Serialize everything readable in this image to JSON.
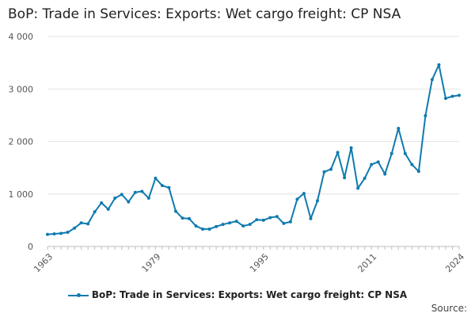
{
  "chart_data": {
    "type": "line",
    "title": "BoP: Trade in Services: Exports: Wet cargo freight: CP NSA",
    "xlabel": "",
    "ylabel": "",
    "x_tick_labels": [
      "1963",
      "1979",
      "1995",
      "2011",
      "2024"
    ],
    "y_tick_labels": [
      "0",
      "1 000",
      "2 000",
      "3 000",
      "4 000"
    ],
    "y_ticks": [
      0,
      1000,
      2000,
      3000,
      4000
    ],
    "xlim": [
      1963,
      2024
    ],
    "ylim": [
      0,
      4000
    ],
    "grid": true,
    "legend_position": "bottom",
    "series": [
      {
        "name": "BoP: Trade in Services: Exports: Wet cargo freight: CP NSA",
        "color": "#0f7aaf",
        "x": [
          1963,
          1964,
          1965,
          1966,
          1967,
          1968,
          1969,
          1970,
          1971,
          1972,
          1973,
          1974,
          1975,
          1976,
          1977,
          1978,
          1979,
          1980,
          1981,
          1982,
          1983,
          1984,
          1985,
          1986,
          1987,
          1988,
          1989,
          1990,
          1991,
          1992,
          1993,
          1994,
          1995,
          1996,
          1997,
          1998,
          1999,
          2000,
          2001,
          2002,
          2003,
          2004,
          2005,
          2006,
          2007,
          2008,
          2009,
          2010,
          2011,
          2012,
          2013,
          2014,
          2015,
          2016,
          2017,
          2018,
          2019,
          2020,
          2021,
          2022,
          2023,
          2024
        ],
        "values": [
          230,
          240,
          250,
          270,
          350,
          450,
          430,
          660,
          830,
          710,
          920,
          990,
          850,
          1030,
          1050,
          920,
          1300,
          1160,
          1120,
          670,
          540,
          530,
          390,
          330,
          330,
          380,
          420,
          450,
          480,
          390,
          420,
          510,
          500,
          550,
          570,
          440,
          470,
          900,
          1010,
          530,
          870,
          1420,
          1470,
          1790,
          1310,
          1880,
          1110,
          1300,
          1560,
          1610,
          1380,
          1770,
          2250,
          1770,
          1560,
          1430,
          2490,
          3180,
          3460,
          2820,
          2860,
          2880
        ]
      }
    ]
  },
  "source_label": "Source:"
}
